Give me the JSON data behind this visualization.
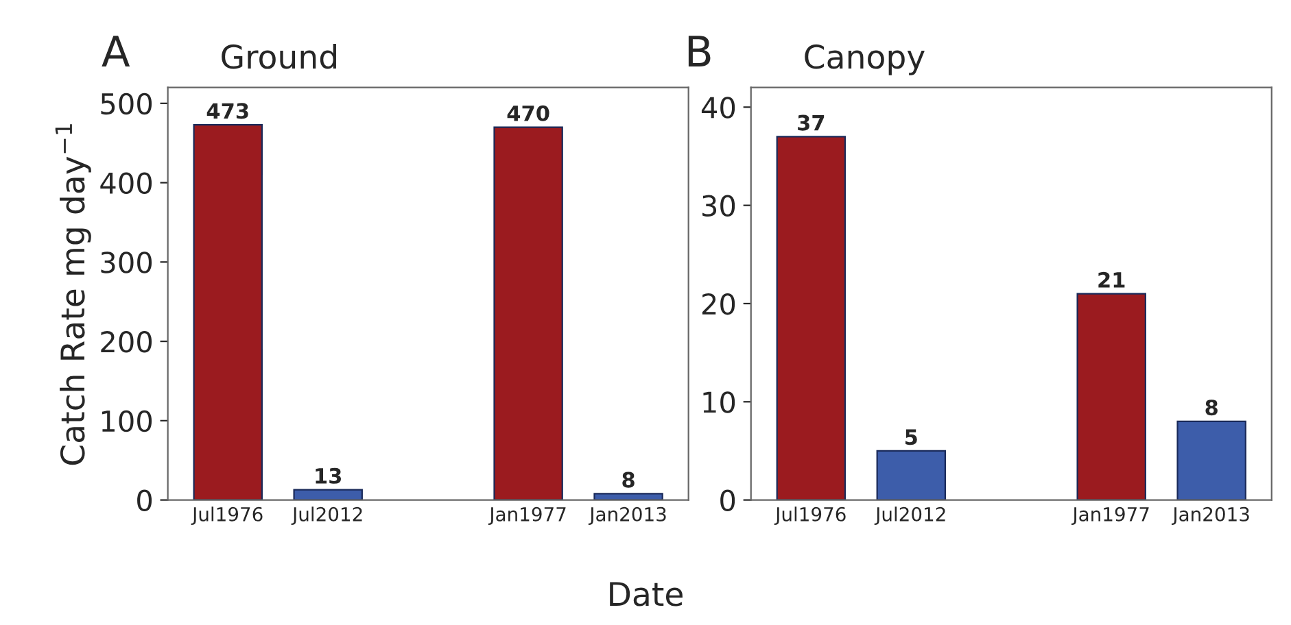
{
  "chart_data": [
    {
      "type": "bar",
      "title": "Ground",
      "annotations": [
        "A"
      ],
      "ylabel": "Catch Rate mg day$^{−1}$",
      "xlabel": "Date",
      "categories": [
        "Jul1976",
        "Jul2012",
        null,
        "Jan1977",
        "Jan2013"
      ],
      "values": [
        473,
        13,
        null,
        470,
        8
      ],
      "colors": [
        "#9b1b1f",
        "#3d5daa",
        "#9b1b1f",
        "#9b1b1f",
        "#3d5daa"
      ],
      "ylim": [
        0,
        520
      ],
      "yticks": [
        0,
        100,
        200,
        300,
        400,
        500
      ],
      "grid": false,
      "data_labels": true
    },
    {
      "type": "bar",
      "title": "Canopy",
      "annotations": [
        "B"
      ],
      "categories": [
        "Jul1976",
        "Jul2012",
        null,
        "Jan1977",
        "Jan2013"
      ],
      "values": [
        37,
        5,
        null,
        21,
        8
      ],
      "colors": [
        "#9b1b1f",
        "#3d5daa",
        "#9b1b1f",
        "#9b1b1f",
        "#3d5daa"
      ],
      "ylim": [
        0,
        42
      ],
      "yticks": [
        0,
        10,
        20,
        30,
        40
      ],
      "grid": false,
      "data_labels": true
    }
  ]
}
